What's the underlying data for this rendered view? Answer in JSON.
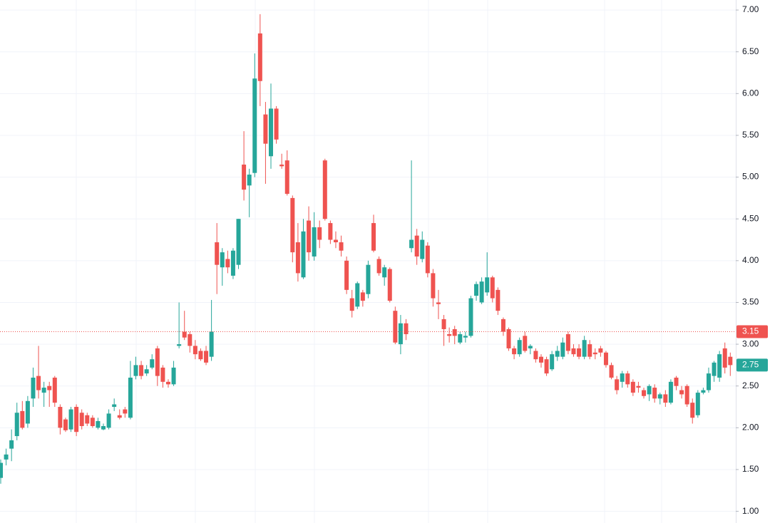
{
  "chart_data": {
    "type": "candlestick",
    "up_color": "#26a69a",
    "down_color": "#ef5350",
    "ylim": [
      0.86,
      7.12
    ],
    "yticks": [
      {
        "value": 1,
        "label": "1.00"
      },
      {
        "value": 1.5,
        "label": "1.50"
      },
      {
        "value": 2,
        "label": "2.00"
      },
      {
        "value": 2.5,
        "label": "2.50"
      },
      {
        "value": 3,
        "label": "3.00"
      },
      {
        "value": 3.5,
        "label": "3.50"
      },
      {
        "value": 4,
        "label": "4.00"
      },
      {
        "value": 4.5,
        "label": "4.50"
      },
      {
        "value": 5,
        "label": "5.00"
      },
      {
        "value": 5.5,
        "label": "5.50"
      },
      {
        "value": 6,
        "label": "6.00"
      },
      {
        "value": 6.5,
        "label": "6.50"
      },
      {
        "value": 7,
        "label": "7.00"
      }
    ],
    "grid": true,
    "price_lines": [
      {
        "value": 3.15,
        "label": "3.15",
        "color": "#ef5350",
        "dotted_line": true
      },
      {
        "value": 2.75,
        "label": "2.75",
        "color": "#26a69a",
        "dotted_line": false
      }
    ],
    "open": [
      1.4,
      1.62,
      1.75,
      1.9,
      2.2,
      2.05,
      2.35,
      2.62,
      2.42,
      2.5,
      2.6,
      2.25,
      2.1,
      1.98,
      2.25,
      2.18,
      2.15,
      2.12,
      2.0,
      1.98,
      2.0,
      2.25,
      2.15,
      2.22,
      2.12,
      2.62,
      2.75,
      2.65,
      2.72,
      2.95,
      2.72,
      2.55,
      2.52,
      2.98,
      3.15,
      3.12,
      2.98,
      2.92,
      2.92,
      2.85,
      4.22,
      3.92,
      4.02,
      3.82,
      3.95,
      5.15,
      4.9,
      5.05,
      6.72,
      5.75,
      5.25,
      5.82,
      5.15,
      5.2,
      4.75,
      4.22,
      3.8,
      4.48,
      4.05,
      4.4,
      5.2,
      4.45,
      4.25,
      4.22,
      4.0,
      3.55,
      3.45,
      3.62,
      3.6,
      4.45,
      4.02,
      3.8,
      3.9,
      3.4,
      3.0,
      3.25,
      4.15,
      4.3,
      4.02,
      4.18,
      3.85,
      3.5,
      3.3,
      3.12,
      3.18,
      3.02,
      3.08,
      3.1,
      3.58,
      3.5,
      3.62,
      3.8,
      3.65,
      3.3,
      3.18,
      2.95,
      2.88,
      3.1,
      2.95,
      2.92,
      2.85,
      2.82,
      2.7,
      2.85,
      2.85,
      3.12,
      2.95,
      2.95,
      2.85,
      3.0,
      2.9,
      2.95,
      2.9,
      2.75,
      2.58,
      2.55,
      2.65,
      2.55,
      2.5,
      2.45,
      2.4,
      2.48,
      2.35,
      2.4,
      2.3,
      2.6,
      2.45,
      2.5,
      2.3,
      2.15,
      2.42,
      2.45,
      2.62,
      2.6,
      2.95,
      2.85
    ],
    "high": [
      1.62,
      1.75,
      1.98,
      2.3,
      2.32,
      2.38,
      2.72,
      2.98,
      2.55,
      2.55,
      2.62,
      2.28,
      2.12,
      2.25,
      2.28,
      2.22,
      2.18,
      2.15,
      2.12,
      2.05,
      2.22,
      2.35,
      2.22,
      2.25,
      2.8,
      2.85,
      2.8,
      2.75,
      2.88,
      2.98,
      2.75,
      2.58,
      2.8,
      3.5,
      3.4,
      3.15,
      3.05,
      2.95,
      2.98,
      3.53,
      4.45,
      4.15,
      4.12,
      4.15,
      4.5,
      5.55,
      5.1,
      6.48,
      6.95,
      5.9,
      6.12,
      5.85,
      5.28,
      5.32,
      4.78,
      4.45,
      4.5,
      4.65,
      4.58,
      4.48,
      5.22,
      4.48,
      4.35,
      4.3,
      4.05,
      3.65,
      3.75,
      3.65,
      4.0,
      4.55,
      4.05,
      3.95,
      3.92,
      3.45,
      3.35,
      3.3,
      5.2,
      4.38,
      4.35,
      4.22,
      3.9,
      3.65,
      3.35,
      3.2,
      3.22,
      3.15,
      3.15,
      3.58,
      3.75,
      3.8,
      4.1,
      3.82,
      3.68,
      3.32,
      3.2,
      2.98,
      3.08,
      3.15,
      3.0,
      2.95,
      2.88,
      2.85,
      2.92,
      2.98,
      3.08,
      3.15,
      3.0,
      3.0,
      3.1,
      3.05,
      2.95,
      2.98,
      2.92,
      2.78,
      2.62,
      2.68,
      2.68,
      2.58,
      2.55,
      2.48,
      2.52,
      2.52,
      2.42,
      2.45,
      2.58,
      2.62,
      2.5,
      2.52,
      2.35,
      2.45,
      2.48,
      2.72,
      2.8,
      2.92,
      3.02,
      2.9
    ],
    "low": [
      1.33,
      1.55,
      1.6,
      1.85,
      1.98,
      2.0,
      2.25,
      2.35,
      2.25,
      2.25,
      2.25,
      1.92,
      1.95,
      1.95,
      1.9,
      1.98,
      2.02,
      2.0,
      1.98,
      1.97,
      1.98,
      2.2,
      2.1,
      2.12,
      2.1,
      2.58,
      2.58,
      2.62,
      2.7,
      2.5,
      2.48,
      2.48,
      2.5,
      2.95,
      3.05,
      2.9,
      2.82,
      2.8,
      2.75,
      2.8,
      3.6,
      3.7,
      3.85,
      3.78,
      3.9,
      4.72,
      4.52,
      5.0,
      5.85,
      4.92,
      5.1,
      5.4,
      5.1,
      4.78,
      3.98,
      3.75,
      3.78,
      4.0,
      4.0,
      4.15,
      4.48,
      4.2,
      4.15,
      4.05,
      3.6,
      3.32,
      3.42,
      3.45,
      3.55,
      4.1,
      3.82,
      3.7,
      3.5,
      3.0,
      2.88,
      3.05,
      4.1,
      3.95,
      3.98,
      3.8,
      3.45,
      3.3,
      2.98,
      3.02,
      3.0,
      3.0,
      3.02,
      3.08,
      3.52,
      3.48,
      3.58,
      3.5,
      3.35,
      3.1,
      2.92,
      2.82,
      2.85,
      2.9,
      2.88,
      2.78,
      2.72,
      2.62,
      2.68,
      2.8,
      2.82,
      2.88,
      2.85,
      2.82,
      2.82,
      2.82,
      2.82,
      2.85,
      2.72,
      2.58,
      2.4,
      2.48,
      2.48,
      2.38,
      2.42,
      2.35,
      2.32,
      2.3,
      2.28,
      2.25,
      2.28,
      2.45,
      2.35,
      2.25,
      2.05,
      2.12,
      2.4,
      2.42,
      2.55,
      2.55,
      2.65,
      2.62
    ],
    "close": [
      1.58,
      1.68,
      1.85,
      2.18,
      2.0,
      2.32,
      2.6,
      2.45,
      2.48,
      2.45,
      2.3,
      2.0,
      1.97,
      2.22,
      1.95,
      2.02,
      2.05,
      2.02,
      2.08,
      2.02,
      2.17,
      2.28,
      2.12,
      2.17,
      2.6,
      2.75,
      2.62,
      2.7,
      2.82,
      2.62,
      2.55,
      2.52,
      2.72,
      3.0,
      3.08,
      2.98,
      2.88,
      2.82,
      2.78,
      3.15,
      3.95,
      4.1,
      3.92,
      4.12,
      4.5,
      4.85,
      5.03,
      6.18,
      6.15,
      5.4,
      5.82,
      5.45,
      5.13,
      4.8,
      4.1,
      3.85,
      4.35,
      4.1,
      4.4,
      4.25,
      4.5,
      4.25,
      4.22,
      4.12,
      3.65,
      3.4,
      3.73,
      3.52,
      3.95,
      4.12,
      3.85,
      3.92,
      3.52,
      3.02,
      3.25,
      3.12,
      4.25,
      4.05,
      4.25,
      3.85,
      3.55,
      3.48,
      3.18,
      3.1,
      3.1,
      3.12,
      3.1,
      3.55,
      3.72,
      3.75,
      3.8,
      3.55,
      3.4,
      3.15,
      2.95,
      2.88,
      3.05,
      2.92,
      2.98,
      2.82,
      2.78,
      2.65,
      2.88,
      2.92,
      3.02,
      2.92,
      2.88,
      2.85,
      3.05,
      2.85,
      2.88,
      2.9,
      2.75,
      2.6,
      2.45,
      2.65,
      2.52,
      2.42,
      2.48,
      2.38,
      2.5,
      2.35,
      2.4,
      2.3,
      2.55,
      2.5,
      2.4,
      2.28,
      2.12,
      2.42,
      2.45,
      2.65,
      2.78,
      2.88,
      2.72,
      2.75
    ]
  }
}
